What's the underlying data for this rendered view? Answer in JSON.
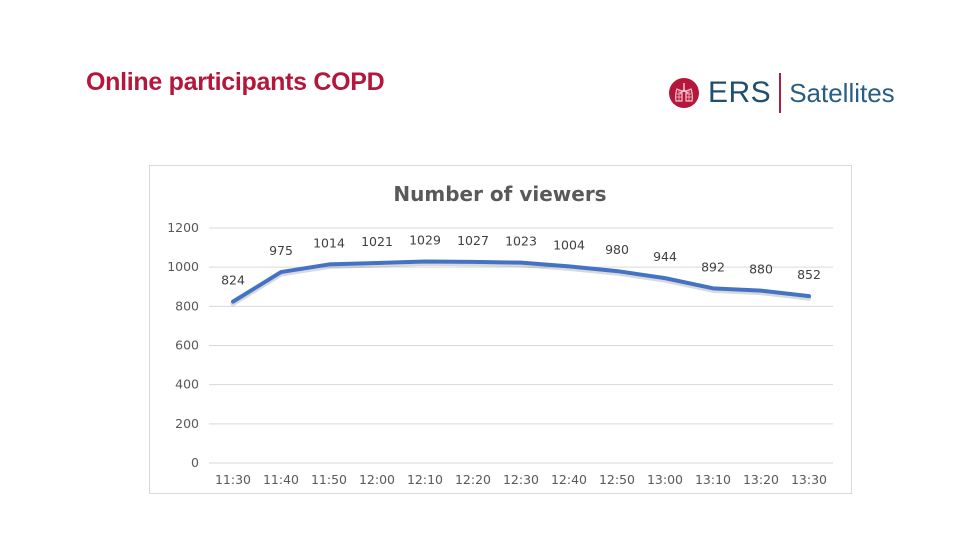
{
  "slide": {
    "title": "Online participants COPD",
    "logo": {
      "primary": "ERS",
      "secondary": "Satellites",
      "icon": "lungs-icon",
      "accent_color": "#b5163b",
      "text_color": "#1f4e6e"
    }
  },
  "chart_data": {
    "type": "line",
    "title": "Number of viewers",
    "xlabel": "",
    "ylabel": "",
    "categories": [
      "11:30",
      "11:40",
      "11:50",
      "12:00",
      "12:10",
      "12:20",
      "12:30",
      "12:40",
      "12:50",
      "13:00",
      "13:10",
      "13:20",
      "13:30"
    ],
    "series": [
      {
        "name": "Number of viewers",
        "values": [
          824,
          975,
          1014,
          1021,
          1029,
          1027,
          1023,
          1004,
          980,
          944,
          892,
          880,
          852
        ],
        "color": "#4472c4"
      }
    ],
    "data_labels": [
      "824",
      "975",
      "1014",
      "1021",
      "1029",
      "1027",
      "1023",
      "1004",
      "980",
      "944",
      "892",
      "880",
      "852"
    ],
    "ylim": [
      0,
      1200
    ],
    "yticks": [
      "0",
      "200",
      "400",
      "600",
      "800",
      "1000",
      "1200"
    ],
    "grid": true,
    "legend": "none"
  }
}
